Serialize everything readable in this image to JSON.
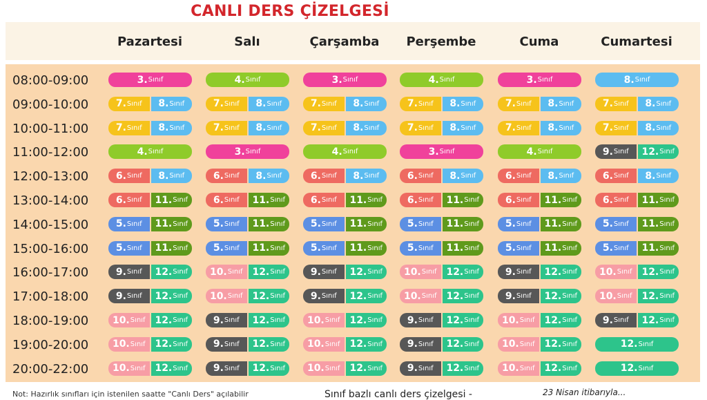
{
  "title": "CANLI DERS ÇİZELGESİ",
  "days": [
    "Pazartesi",
    "Salı",
    "Çarşamba",
    "Perşembe",
    "Cuma",
    "Cumartesi"
  ],
  "suffix": "Sınıf",
  "colors": {
    "3": "#f0419b",
    "4": "#8fcb2a",
    "5": "#5c8fe3",
    "6": "#ee6a61",
    "7": "#f6c31b",
    "8": "#5cbcf0",
    "9": "#575757",
    "10": "#f79da5",
    "11": "#5f9a1c",
    "12": "#2dc48b"
  },
  "rows": [
    {
      "time": "08:00-09:00",
      "cells": [
        [
          "3"
        ],
        [
          "4"
        ],
        [
          "3"
        ],
        [
          "4"
        ],
        [
          "3"
        ],
        [
          "8"
        ]
      ]
    },
    {
      "time": "09:00-10:00",
      "cells": [
        [
          "7",
          "8"
        ],
        [
          "7",
          "8"
        ],
        [
          "7",
          "8"
        ],
        [
          "7",
          "8"
        ],
        [
          "7",
          "8"
        ],
        [
          "7",
          "8"
        ]
      ]
    },
    {
      "time": "10:00-11:00",
      "cells": [
        [
          "7",
          "8"
        ],
        [
          "7",
          "8"
        ],
        [
          "7",
          "8"
        ],
        [
          "7",
          "8"
        ],
        [
          "7",
          "8"
        ],
        [
          "7",
          "8"
        ]
      ]
    },
    {
      "time": "11:00-12:00",
      "cells": [
        [
          "4"
        ],
        [
          "3"
        ],
        [
          "4"
        ],
        [
          "3"
        ],
        [
          "4"
        ],
        [
          "9",
          "12"
        ]
      ]
    },
    {
      "time": "12:00-13:00",
      "cells": [
        [
          "6",
          "8"
        ],
        [
          "6",
          "8"
        ],
        [
          "6",
          "8"
        ],
        [
          "6",
          "8"
        ],
        [
          "6",
          "8"
        ],
        [
          "6",
          "8"
        ]
      ]
    },
    {
      "time": "13:00-14:00",
      "cells": [
        [
          "6",
          "11"
        ],
        [
          "6",
          "11"
        ],
        [
          "6",
          "11"
        ],
        [
          "6",
          "11"
        ],
        [
          "6",
          "11"
        ],
        [
          "6",
          "11"
        ]
      ]
    },
    {
      "time": "14:00-15:00",
      "cells": [
        [
          "5",
          "11"
        ],
        [
          "5",
          "11"
        ],
        [
          "5",
          "11"
        ],
        [
          "5",
          "11"
        ],
        [
          "5",
          "11"
        ],
        [
          "5",
          "11"
        ]
      ]
    },
    {
      "time": "15:00-16:00",
      "cells": [
        [
          "5",
          "11"
        ],
        [
          "5",
          "11"
        ],
        [
          "5",
          "11"
        ],
        [
          "5",
          "11"
        ],
        [
          "5",
          "11"
        ],
        [
          "5",
          "11"
        ]
      ]
    },
    {
      "time": "16:00-17:00",
      "cells": [
        [
          "9",
          "12"
        ],
        [
          "10",
          "12"
        ],
        [
          "9",
          "12"
        ],
        [
          "10",
          "12"
        ],
        [
          "9",
          "12"
        ],
        [
          "10",
          "12"
        ]
      ]
    },
    {
      "time": "17:00-18:00",
      "cells": [
        [
          "9",
          "12"
        ],
        [
          "10",
          "12"
        ],
        [
          "9",
          "12"
        ],
        [
          "10",
          "12"
        ],
        [
          "9",
          "12"
        ],
        [
          "10",
          "12"
        ]
      ]
    },
    {
      "time": "18:00-19:00",
      "cells": [
        [
          "10",
          "12"
        ],
        [
          "9",
          "12"
        ],
        [
          "10",
          "12"
        ],
        [
          "9",
          "12"
        ],
        [
          "10",
          "12"
        ],
        [
          "9",
          "12"
        ]
      ]
    },
    {
      "time": "19:00-20:00",
      "cells": [
        [
          "10",
          "12"
        ],
        [
          "9",
          "12"
        ],
        [
          "10",
          "12"
        ],
        [
          "9",
          "12"
        ],
        [
          "10",
          "12"
        ],
        [
          "12"
        ]
      ]
    },
    {
      "time": "20:00-22:00",
      "cells": [
        [
          "10",
          "12"
        ],
        [
          "9",
          "12"
        ],
        [
          "10",
          "12"
        ],
        [
          "9",
          "12"
        ],
        [
          "10",
          "12"
        ],
        [
          "12"
        ]
      ]
    }
  ],
  "footer": {
    "note": "Not: Hazırlık sınıfları için istenilen saatte \"Canlı Ders\" açılabilir",
    "box1": "Sınıf bazlı canlı ders çizelgesi -",
    "box2": "23 Nisan itibarıyla..."
  }
}
